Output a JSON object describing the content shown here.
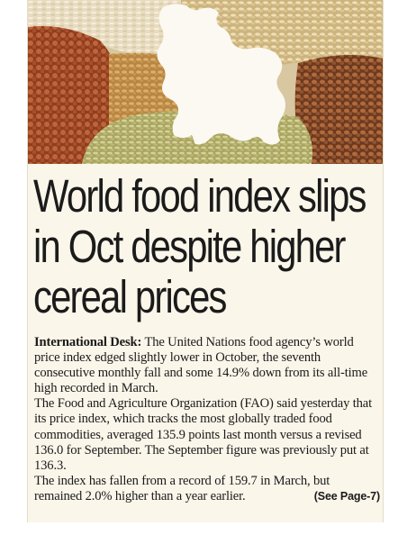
{
  "article": {
    "headline_lines": [
      "World food index slips",
      "in Oct despite higher",
      "cereal prices"
    ],
    "byline": "International Desk:",
    "paragraphs": [
      "The United Nations food agency’s world price index edged slightly lower in October, the seventh consecutive monthly fall and some 14.9% down from its all-time high recorded in March.",
      "The Food and Agriculture Organization (FAO) said yesterday that its price index, which tracks the most globally traded food commodities, averaged 135.9 points last month versus a revised 136.0 for September. The September figure was previously put at 136.3.",
      "The index has fallen from a record of 159.7 in March, but remained 2.0% higher than a year earlier."
    ],
    "see_page": "(See Page-7)"
  },
  "photo": {
    "description_icon": "grain-piles-map-photo",
    "colors": {
      "rice": "#ece0c4",
      "lentil_red": "#b5542f",
      "lentil_brown": "#9a5a33",
      "wheat": "#c99a55",
      "barley": "#d9c38d",
      "seeds_green": "#c8c488",
      "map_silhouette": "#fbf9f2"
    }
  }
}
